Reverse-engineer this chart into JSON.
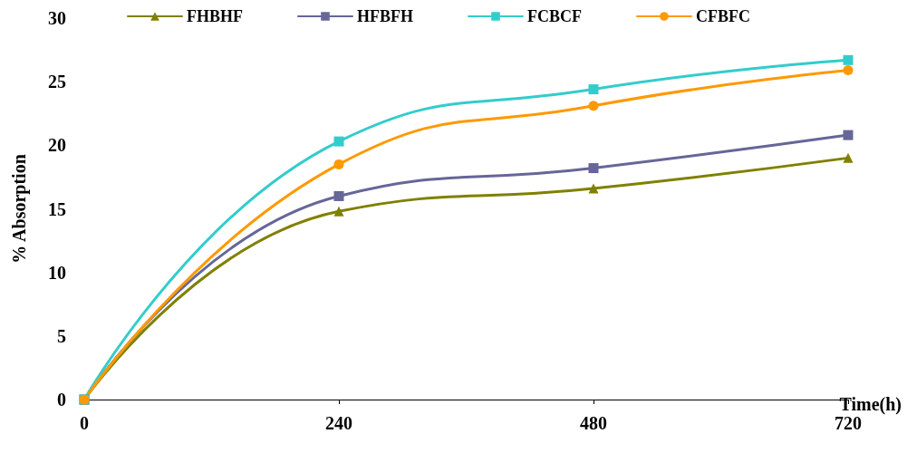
{
  "chart_data": {
    "type": "line",
    "xlabel": "Time(h)",
    "ylabel": "% Absorption",
    "x": [
      0,
      240,
      480,
      720
    ],
    "xlim": [
      0,
      720
    ],
    "xticks": [
      0,
      240,
      480,
      720
    ],
    "ylim": [
      0,
      30
    ],
    "yticks": [
      0,
      5,
      10,
      15,
      20,
      25,
      30
    ],
    "grid": false,
    "legend": "top",
    "line_style": "solid",
    "series": [
      {
        "name": "FHBHF",
        "color": "#808000",
        "marker": "triangle",
        "values": [
          0,
          14.8,
          16.6,
          19.0
        ]
      },
      {
        "name": "HFBFH",
        "color": "#666699",
        "marker": "square",
        "values": [
          0,
          16.0,
          18.2,
          20.8
        ]
      },
      {
        "name": "FCBCF",
        "color": "#33cccc",
        "marker": "square",
        "values": [
          0,
          20.3,
          24.4,
          26.7
        ]
      },
      {
        "name": "CFBFC",
        "color": "#ff9900",
        "marker": "circle",
        "values": [
          0,
          18.5,
          23.1,
          25.9
        ]
      }
    ]
  }
}
